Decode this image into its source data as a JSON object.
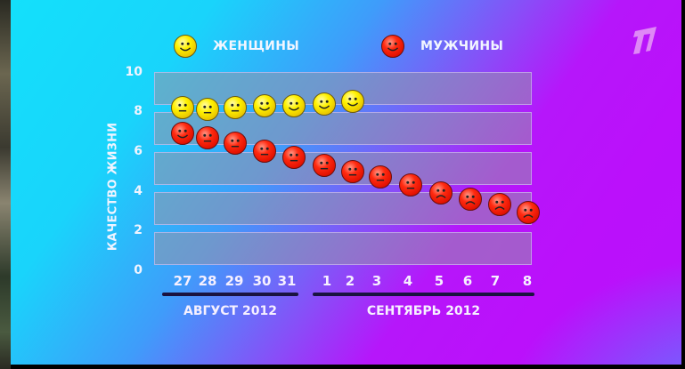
{
  "legend": {
    "women": {
      "label": "ЖЕНЩИНЫ",
      "icon": "yellow-smiley-icon",
      "color": "#fff200"
    },
    "men": {
      "label": "МУЖЧИНЫ",
      "icon": "red-smiley-icon",
      "color": "#ff2a10"
    }
  },
  "channel_logo": "channel-one-logo-icon",
  "axis": {
    "ylabel": "КАЧЕСТВО ЖИЗНИ",
    "yticks": [
      "10",
      "8",
      "6",
      "4",
      "2",
      "0"
    ],
    "xticks": [
      "27",
      "28",
      "29",
      "30",
      "31",
      "1",
      "2",
      "3",
      "4",
      "5",
      "6",
      "7",
      "8"
    ],
    "months": [
      {
        "label": "АВГУСТ 2012"
      },
      {
        "label": "СЕНТЯБРЬ 2012"
      }
    ]
  },
  "chart_data": {
    "type": "scatter",
    "title": "",
    "xlabel": "",
    "ylabel": "КАЧЕСТВО ЖИЗНИ",
    "ylim": [
      0,
      10
    ],
    "yticks": [
      0,
      2,
      4,
      6,
      8,
      10
    ],
    "categories": [
      "27",
      "28",
      "29",
      "30",
      "31",
      "1",
      "2",
      "3",
      "4",
      "5",
      "6",
      "7",
      "8"
    ],
    "category_groups": [
      {
        "label": "АВГУСТ 2012",
        "categories": [
          "27",
          "28",
          "29",
          "30",
          "31"
        ]
      },
      {
        "label": "СЕНТЯБРЬ 2012",
        "categories": [
          "1",
          "2",
          "3",
          "4",
          "5",
          "6",
          "7",
          "8"
        ]
      }
    ],
    "legend_position": "top",
    "grid": "horizontal bands",
    "series": [
      {
        "name": "ЖЕНЩИНЫ",
        "marker": "yellow smiley",
        "values": [
          8.2,
          8.1,
          8.2,
          8.3,
          8.3,
          8.4,
          8.5,
          null,
          null,
          null,
          null,
          null,
          null
        ],
        "faces": [
          "neutral",
          "neutral",
          "neutral",
          "smile",
          "smile",
          "smile",
          "smile",
          null,
          null,
          null,
          null,
          null,
          null
        ]
      },
      {
        "name": "МУЖЧИНЫ",
        "marker": "red smiley",
        "values": [
          6.9,
          6.7,
          6.4,
          6.0,
          5.7,
          5.3,
          5.0,
          4.7,
          4.3,
          3.9,
          3.6,
          3.3,
          2.9
        ],
        "faces": [
          "smile",
          "neutral",
          "neutral",
          "neutral",
          "neutral",
          "neutral",
          "neutral",
          "neutral",
          "neutral",
          "frown",
          "frown",
          "frown",
          "frown"
        ]
      }
    ]
  }
}
